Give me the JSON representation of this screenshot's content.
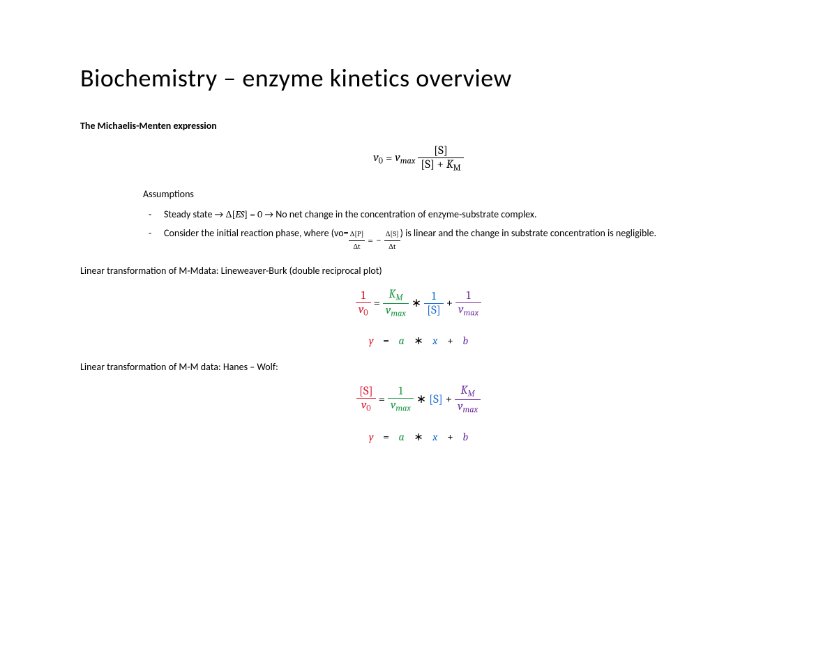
{
  "title": "Biochemistry – enzyme kinetics overview",
  "section1": {
    "heading": "The Michaelis-Menten expression",
    "assumptions_label": "Assumptions",
    "bullets": {
      "b1_pre": "Steady state → ",
      "b1_math": "Δ[ES] = 0",
      "b1_post": " → No net change in the concentration of enzyme-substrate complex.",
      "b2_pre": "Consider the initial reaction phase, where (vo=",
      "b2_post": ") is linear and the change in substrate concentration is negligible."
    }
  },
  "lineweaver": {
    "label": "Linear transformation of M-Mdata: Lineweaver-Burk (double reciprocal plot)"
  },
  "hanes": {
    "label": "Linear transformation of M-M data: Hanes – Wolf:"
  },
  "colors": {
    "y": "#d9132a",
    "a": "#1a9641",
    "x": "#1f6fd4",
    "b": "#7030a0",
    "black": "#000000"
  },
  "mm_eq": {
    "v0": "v",
    "v0_sub": "0",
    "eq": " = ",
    "vmax": "v",
    "vmax_sub": "max",
    "S": "[S]",
    "plus": " + ",
    "KM": "K",
    "KM_sub": "M"
  },
  "rate_frac": {
    "dP": "Δ[P]",
    "dS": "Δ[S]",
    "dt": "Δt",
    "eq": " = ",
    "neg": "− "
  },
  "linrow": {
    "y": "y",
    "eq": "=",
    "a": "a",
    "star": "∗",
    "x": "x",
    "plus": "+",
    "b": "b"
  },
  "typography": {
    "title_fontsize": 36,
    "body_fontsize": 14,
    "math_fontsize": 17,
    "font_family_body": "Calibri",
    "font_family_math": "Cambria Math"
  }
}
